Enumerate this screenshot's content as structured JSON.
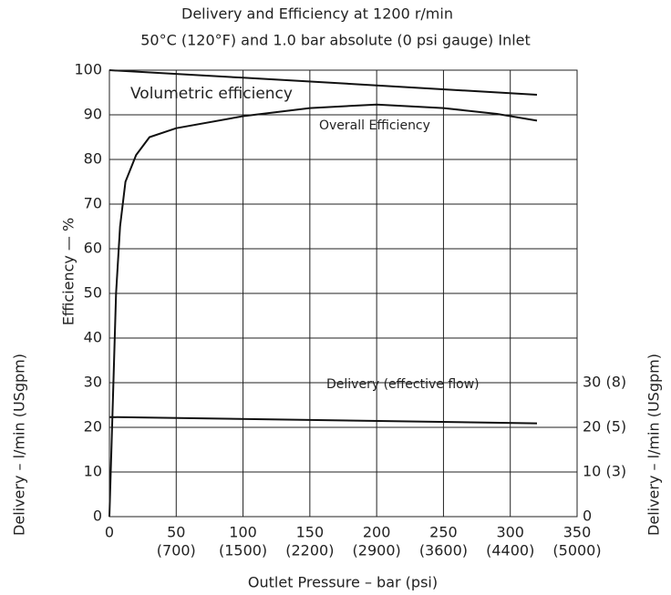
{
  "chart_data": {
    "type": "line",
    "title": "Delivery and Efficiency at 1200 r/min",
    "subtitle": "50°C (120°F) and 1.0 bar absolute (0 psi gauge) Inlet",
    "x_label": "Outlet Pressure – bar (psi)",
    "y_label": "Efficiency — %",
    "y2_label": "Delivery – l/min (USgpm)",
    "left_label": "Delivery – l/min (USgpm)",
    "xlim": [
      0,
      350
    ],
    "xticks": [
      0,
      50,
      100,
      150,
      200,
      250,
      300,
      350
    ],
    "xtick_secondary_labels": [
      null,
      "(700)",
      "(1500)",
      "(2200)",
      "(2900)",
      "(3600)",
      "(4400)",
      "(5000)"
    ],
    "ylim": [
      0,
      100
    ],
    "yticks": [
      0,
      10,
      20,
      30,
      40,
      50,
      60,
      70,
      80,
      90,
      100
    ],
    "y2lim": [
      0,
      100
    ],
    "y2ticks": [
      0,
      {
        "value": 10,
        "label": "10 (3)"
      },
      {
        "value": 20,
        "label": "20 (5)"
      },
      {
        "value": 30,
        "label": "30 (8)"
      }
    ],
    "grid": true,
    "series": [
      {
        "name": "Volumetric efficiency",
        "color": "#111111",
        "x": [
          0,
          100,
          200,
          320
        ],
        "values": [
          100,
          98.3,
          96.6,
          94.5
        ]
      },
      {
        "name": "Overall Efficiency",
        "color": "#111111",
        "x": [
          0,
          3,
          5,
          8,
          12,
          20,
          30,
          50,
          100,
          150,
          200,
          250,
          290,
          320
        ],
        "values": [
          0,
          30,
          50,
          65,
          75,
          81,
          85,
          87,
          89.7,
          91.5,
          92.3,
          91.5,
          90.2,
          88.7
        ]
      },
      {
        "name": "Delivery (effective flow)",
        "color": "#111111",
        "axis": "y2",
        "x": [
          0,
          320
        ],
        "values": [
          22.3,
          20.9
        ]
      }
    ]
  }
}
